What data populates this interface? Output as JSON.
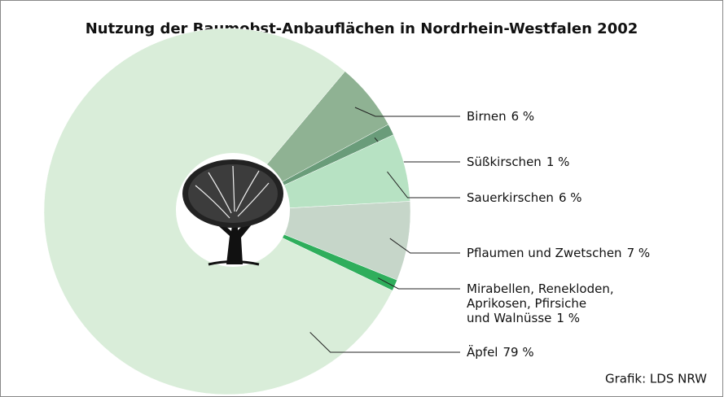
{
  "chart_data": {
    "type": "pie",
    "title": "Nutzung der Baumobst-Anbauflächen in Nordrhein-Westfalen 2002",
    "categories": [
      "Birnen",
      "Süßkirschen",
      "Sauerkirschen",
      "Pflaumen und Zwetschen",
      "Mirabellen, Renekloden, Aprikosen, Pfirsiche und Walnüsse",
      "Äpfel"
    ],
    "values": [
      6,
      1,
      6,
      7,
      1,
      79
    ],
    "value_labels": [
      "6 %",
      "1 %",
      "6 %",
      "7 %",
      "1 %",
      "79 %"
    ],
    "colors": [
      "#8fb293",
      "#6a9c7a",
      "#b7e2c3",
      "#c6d6c9",
      "#2fae5c",
      "#d9edd9"
    ],
    "source": "Grafik: LDS NRW"
  }
}
